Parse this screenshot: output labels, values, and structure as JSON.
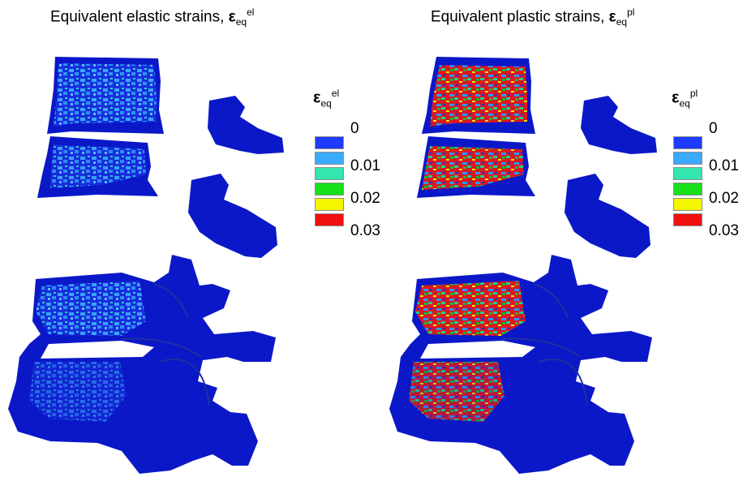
{
  "left_panel": {
    "title_text": "Equivalent elastic strains, ",
    "title_symbol": "ε",
    "title_sub": "eq",
    "title_sup": "el",
    "legend": {
      "symbol": "ε",
      "sub": "eq",
      "sup": "el",
      "ticks": [
        "0",
        "0.01",
        "0.02",
        "0.03"
      ]
    }
  },
  "right_panel": {
    "title_text": "Equivalent plastic strains, ",
    "title_symbol": "ε",
    "title_sub": "eq",
    "title_sup": "pl",
    "legend": {
      "symbol": "ε",
      "sub": "eq",
      "sup": "pl",
      "ticks": [
        "0",
        "0.01",
        "0.02",
        "0.03"
      ]
    }
  },
  "colorbar_colors": [
    "#1f3bff",
    "#3aaaff",
    "#33e6b0",
    "#18e01a",
    "#f5f500",
    "#f01010"
  ],
  "model_base_color": "#0b18c8"
}
